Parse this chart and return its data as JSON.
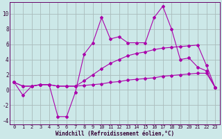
{
  "xlabel": "Windchill (Refroidissement éolien,°C)",
  "bg_color": "#cce8e8",
  "grid_color": "#aabbbb",
  "line_color": "#aa00aa",
  "xlim": [
    -0.5,
    23.5
  ],
  "ylim": [
    -4.5,
    11.5
  ],
  "yticks": [
    -4,
    -2,
    0,
    2,
    4,
    6,
    8,
    10
  ],
  "xticks": [
    0,
    1,
    2,
    3,
    4,
    5,
    6,
    7,
    8,
    9,
    10,
    11,
    12,
    13,
    14,
    15,
    16,
    17,
    18,
    19,
    20,
    21,
    22,
    23
  ],
  "line1_y": [
    1.0,
    -0.7,
    0.5,
    0.7,
    0.7,
    -3.5,
    -3.5,
    -0.3,
    4.7,
    6.2,
    9.5,
    6.7,
    7.0,
    6.2,
    6.2,
    6.2,
    9.5,
    11.0,
    8.0,
    4.0,
    4.2,
    3.0,
    2.5,
    0.3
  ],
  "line2_y": [
    1.0,
    0.5,
    0.5,
    0.7,
    0.7,
    0.5,
    0.5,
    0.5,
    0.6,
    0.7,
    0.8,
    1.0,
    1.1,
    1.3,
    1.4,
    1.5,
    1.6,
    1.8,
    1.9,
    2.0,
    2.1,
    2.2,
    2.2,
    0.3
  ],
  "line3_y": [
    1.0,
    0.5,
    0.5,
    0.7,
    0.7,
    0.5,
    0.5,
    0.5,
    1.2,
    2.0,
    2.8,
    3.5,
    4.0,
    4.5,
    4.8,
    5.0,
    5.3,
    5.5,
    5.6,
    5.7,
    5.8,
    5.9,
    3.2,
    0.3
  ],
  "tick_fontsize": 5.0,
  "label_fontsize": 5.5
}
